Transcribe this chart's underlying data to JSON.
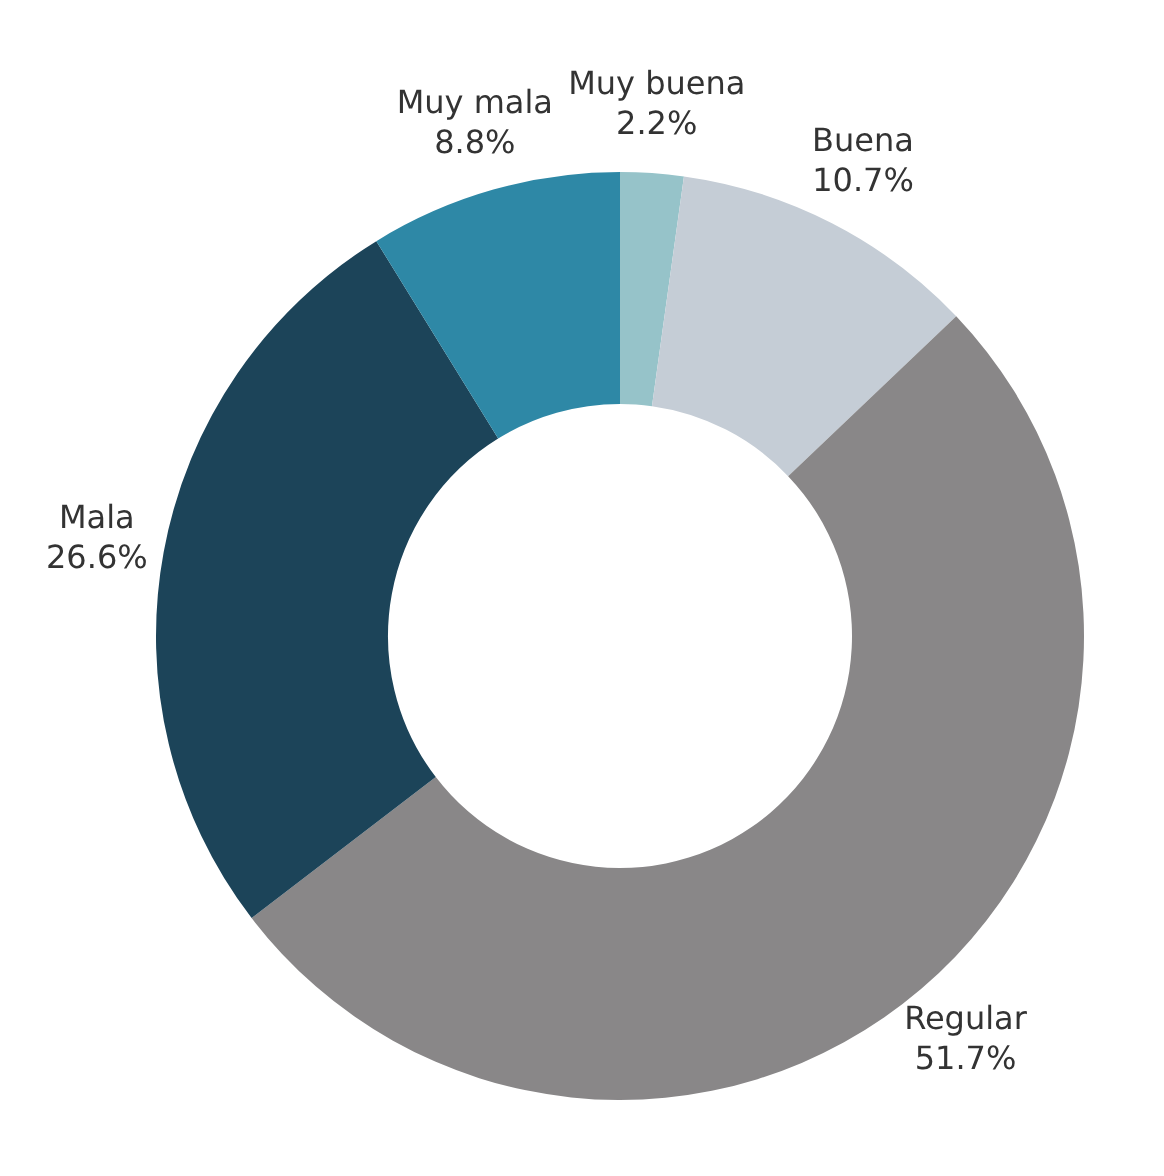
{
  "chart_data": {
    "type": "donut",
    "categories": [
      "Muy buena",
      "Buena",
      "Regular",
      "Mala",
      "Muy mala"
    ],
    "values": [
      2.2,
      10.7,
      51.7,
      26.6,
      8.8
    ],
    "value_labels": [
      "2.2%",
      "10.7%",
      "51.7%",
      "26.6%",
      "8.8%"
    ],
    "colors": [
      "#96c3c9",
      "#c5cdd6",
      "#898788",
      "#1c4459",
      "#2e88a6"
    ],
    "legend": false
  }
}
